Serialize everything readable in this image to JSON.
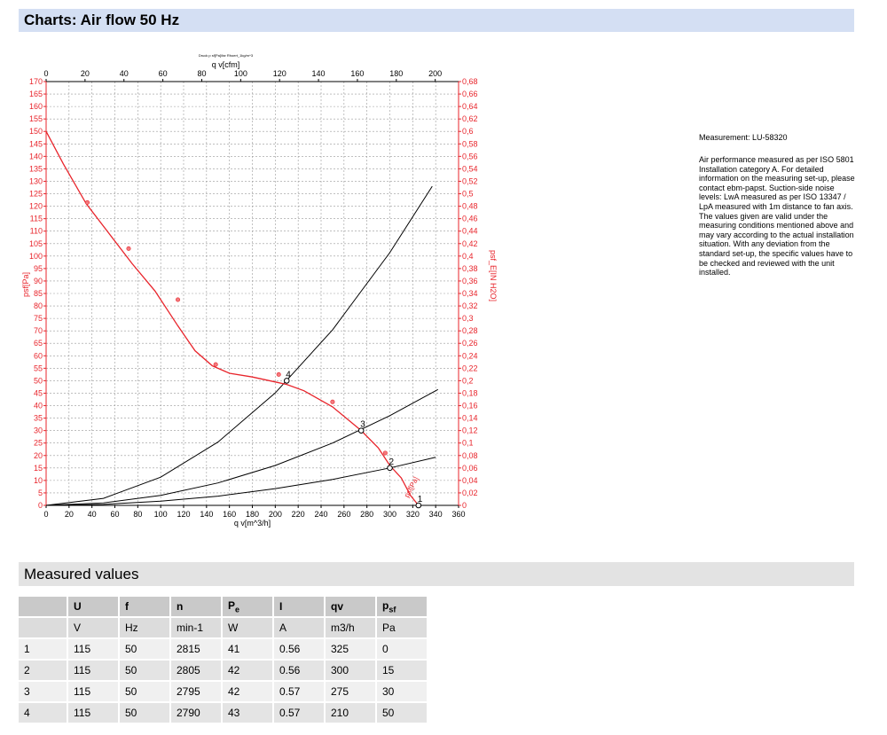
{
  "header": {
    "title": "Charts: Air flow 50 Hz"
  },
  "chart_data": {
    "type": "line",
    "chart_caption": "Druck p sf[Pa]/far Rhoert_1kg/m^3",
    "x_top_label": "q v[cfm]",
    "x_bottom_label": "q v[m^3/h]",
    "y_left_label": "psf[Pa]",
    "y_right_label": "psf_E[IN H2O]",
    "xlim": [
      0,
      360
    ],
    "ylim": [
      0,
      170
    ],
    "x_top_lim": [
      0,
      212
    ],
    "y_right_lim": [
      0,
      0.68
    ],
    "x_ticks": [
      "0",
      "20",
      "40",
      "60",
      "80",
      "100",
      "120",
      "140",
      "160",
      "180",
      "200",
      "220",
      "240",
      "260",
      "280",
      "300",
      "320",
      "340",
      "360"
    ],
    "x_top_ticks": [
      "0",
      "20",
      "40",
      "60",
      "80",
      "100",
      "120",
      "140",
      "160",
      "180",
      "200"
    ],
    "y_ticks": [
      "0",
      "5",
      "10",
      "15",
      "20",
      "25",
      "30",
      "35",
      "40",
      "45",
      "50",
      "55",
      "60",
      "65",
      "70",
      "75",
      "80",
      "85",
      "90",
      "95",
      "100",
      "105",
      "110",
      "115",
      "120",
      "125",
      "130",
      "135",
      "140",
      "145",
      "150",
      "155",
      "160",
      "165",
      "170"
    ],
    "y_right_ticks": [
      "0",
      "0,02",
      "0,04",
      "0,06",
      "0,08",
      "0,1",
      "0,12",
      "0,14",
      "0,16",
      "0,18",
      "0,2",
      "0,22",
      "0,24",
      "0,26",
      "0,28",
      "0,3",
      "0,32",
      "0,34",
      "0,36",
      "0,38",
      "0,4",
      "0,42",
      "0,44",
      "0,46",
      "0,48",
      "0,5",
      "0,52",
      "0,54",
      "0,56",
      "0,58",
      "0,6",
      "0,62",
      "0,64",
      "0,66",
      "0,68"
    ],
    "grid": true,
    "fan_curve": {
      "name": "psf[Pa]",
      "color": "#e8242b",
      "x": [
        0,
        15,
        35,
        55,
        75,
        95,
        115,
        130,
        145,
        160,
        180,
        200,
        210,
        225,
        250,
        275,
        290,
        300,
        310,
        318,
        325
      ],
      "y": [
        150,
        137,
        121,
        109,
        97,
        86,
        72,
        62,
        56,
        53,
        51.5,
        49.5,
        48.5,
        46,
        39.5,
        30,
        23,
        16,
        11,
        4,
        0
      ]
    },
    "measured_points": {
      "x": [
        36,
        72,
        115,
        148,
        203,
        250,
        296
      ],
      "y": [
        121.5,
        103,
        82.5,
        56.5,
        52.5,
        41.5,
        21
      ]
    },
    "system_curves": [
      {
        "x": [
          0,
          50,
          100,
          150,
          200,
          250,
          300,
          337
        ],
        "y": [
          0,
          2.8,
          11.3,
          25.4,
          45.1,
          70.4,
          101.4,
          128
        ]
      },
      {
        "x": [
          0,
          50,
          100,
          150,
          200,
          250,
          300,
          342
        ],
        "y": [
          0,
          1.0,
          4.0,
          9.0,
          16.0,
          25.0,
          36.0,
          46.5
        ]
      },
      {
        "x": [
          0,
          50,
          100,
          150,
          200,
          250,
          300,
          340
        ],
        "y": [
          0,
          0.4,
          1.7,
          3.7,
          6.7,
          10.4,
          15.0,
          19.3
        ]
      }
    ],
    "operating_points": [
      {
        "label": "1",
        "x": 325,
        "y": 0
      },
      {
        "label": "2",
        "x": 300,
        "y": 15
      },
      {
        "label": "3",
        "x": 275,
        "y": 30
      },
      {
        "label": "4",
        "x": 210,
        "y": 50
      }
    ]
  },
  "notes": {
    "measurement": "Measurement: LU-58320",
    "body": "Air performance measured as per ISO 5801 Installation category A. For detailed information on the measuring set-up, please contact ebm-papst. Suction-side noise levels: LwA measured as per ISO 13347 / LpA measured with 1m distance to fan axis. The values given are valid under the measuring conditions mentioned above and may vary according to the actual installation situation. With any deviation from the standard set-up, the specific values have to be checked and reviewed with the unit installed."
  },
  "measured": {
    "title": "Measured values",
    "headers": [
      "",
      "U",
      "f",
      "n",
      "P",
      "I",
      "qv",
      "p"
    ],
    "header_subs": [
      "",
      "",
      "",
      "",
      "e",
      "",
      "",
      "sf"
    ],
    "units": [
      "",
      "V",
      "Hz",
      "min-1",
      "W",
      "A",
      "m3/h",
      "Pa"
    ],
    "rows": [
      [
        "1",
        "115",
        "50",
        "2815",
        "41",
        "0.56",
        "325",
        "0"
      ],
      [
        "2",
        "115",
        "50",
        "2805",
        "42",
        "0.56",
        "300",
        "15"
      ],
      [
        "3",
        "115",
        "50",
        "2795",
        "42",
        "0.57",
        "275",
        "30"
      ],
      [
        "4",
        "115",
        "50",
        "2790",
        "43",
        "0.57",
        "210",
        "50"
      ]
    ]
  }
}
